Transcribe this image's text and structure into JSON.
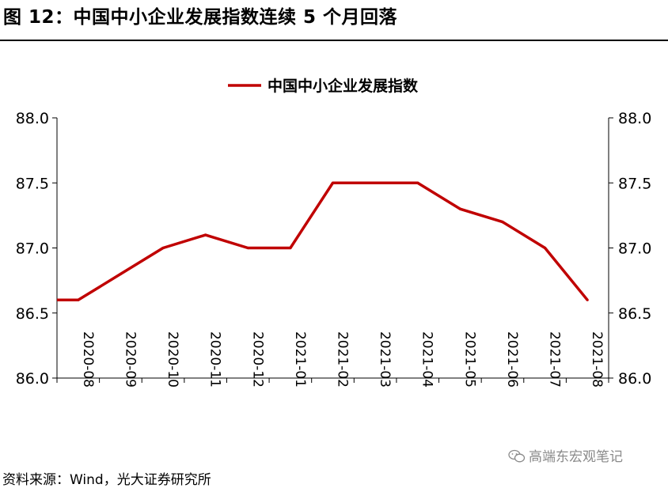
{
  "figure": {
    "title": "图 12：中国中小企业发展指数连续 5 个月回落",
    "source": "资料来源：Wind，光大证券研究所",
    "watermark": "高端东宏观笔记",
    "watermark_icon": "wechat-icon"
  },
  "chart_data": {
    "type": "line",
    "title": "",
    "xlabel": "",
    "ylabel": "",
    "categories": [
      "2020-08",
      "2020-09",
      "2020-10",
      "2020-11",
      "2020-12",
      "2021-01",
      "2021-02",
      "2021-03",
      "2021-04",
      "2021-05",
      "2021-06",
      "2021-07",
      "2021-08"
    ],
    "x_tick_labels": [
      "2020-08",
      "2020-09",
      "2020-10",
      "2020-11",
      "2020-12",
      "2021-01",
      "2021-02",
      "2021-03",
      "2021-04",
      "2021-05",
      "2021-06",
      "2021-07",
      "2021-08"
    ],
    "series": [
      {
        "name": "中国中小企业发展指数",
        "color": "#c00000",
        "values": [
          86.6,
          86.8,
          87.0,
          87.1,
          87.0,
          87.0,
          87.5,
          87.5,
          87.5,
          87.3,
          87.2,
          87.0,
          86.6
        ]
      }
    ],
    "ylim": [
      86.0,
      88.0
    ],
    "y_ticks": [
      "86.0",
      "86.5",
      "87.0",
      "87.5",
      "88.0"
    ],
    "y_tick_values": [
      86.0,
      86.5,
      87.0,
      87.5,
      88.0
    ],
    "secondary_y_axis": true,
    "legend_position": "top-center",
    "grid": false
  }
}
